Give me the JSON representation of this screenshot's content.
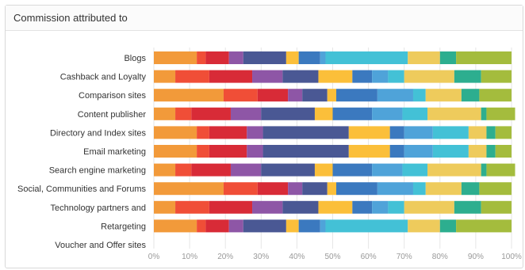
{
  "panel": {
    "title": "Commission attributed to"
  },
  "chart_data": {
    "type": "bar",
    "orientation": "horizontal",
    "stacked": true,
    "normalized": true,
    "xlim": [
      0,
      100
    ],
    "x_ticks": [
      "0%",
      "10%",
      "20%",
      "30%",
      "40%",
      "50%",
      "60%",
      "70%",
      "80%",
      "90%",
      "100%"
    ],
    "grid": "vertical",
    "legend": "none",
    "categories": [
      "Blogs",
      "Cashback and Loyalty",
      "Comparison sites",
      "Content publisher",
      "Directory and Index sites",
      "Email marketing",
      "Search engine marketing",
      "Social, Communities and Forums",
      "Technology partners and",
      "Retargeting",
      "Voucher and Offer sites"
    ],
    "series_colors": [
      "#f29a3a",
      "#f04e37",
      "#d82b37",
      "#8e56a6",
      "#4a5894",
      "#fbbf3a",
      "#3b79bf",
      "#4fa3d9",
      "#43c1d6",
      "#eecb5c",
      "#2dae8f",
      "#a4bc3d"
    ],
    "segments": [
      [
        12,
        2.5,
        6.5,
        4,
        12,
        3.5,
        6,
        1.5,
        23,
        9,
        4.5,
        15.5
      ],
      [
        6,
        9.5,
        12,
        8.5,
        10,
        9.5,
        5.5,
        4.5,
        4.5,
        14,
        7.5,
        8.5
      ],
      [
        19.5,
        9.5,
        8.5,
        4,
        7,
        2.5,
        11.5,
        10,
        3.5,
        10,
        5,
        9
      ],
      [
        6,
        4.5,
        11,
        8.5,
        15,
        5,
        11,
        8.5,
        7,
        15,
        1.5,
        8
      ],
      [
        12,
        3.5,
        10.5,
        4.5,
        24,
        11.5,
        4,
        8,
        10,
        5,
        2.5,
        4.5
      ],
      [
        12,
        3.5,
        10.5,
        4.5,
        24,
        11.5,
        4,
        8,
        10,
        5,
        2.5,
        4.5
      ],
      [
        6,
        4.5,
        11,
        8.5,
        15,
        5,
        11,
        8.5,
        7,
        15,
        1.5,
        8
      ],
      [
        19.5,
        9.5,
        8.5,
        4,
        7,
        2.5,
        11.5,
        10,
        3.5,
        10,
        5,
        9
      ],
      [
        6,
        9.5,
        12,
        8.5,
        10,
        9.5,
        5.5,
        4.5,
        4.5,
        14,
        7.5,
        8.5
      ],
      [
        12,
        2.5,
        6.5,
        4,
        12,
        3.5,
        6,
        1.5,
        23,
        9,
        4.5,
        15.5
      ],
      []
    ]
  }
}
